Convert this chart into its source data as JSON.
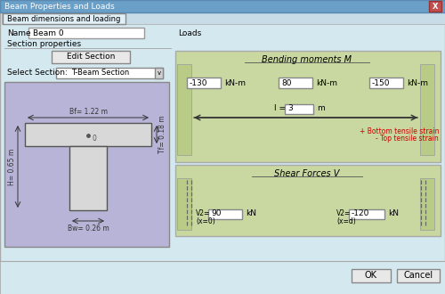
{
  "title": "Beam Properties and Loads",
  "tab_label": "Beam dimensions and loading",
  "name_label": "Name",
  "name_value": "Beam 0",
  "loads_label": "Loads",
  "section_properties_label": "Section properties",
  "edit_section_btn": "Edit Section",
  "select_section_label": "Select Section:",
  "select_section_value": "T-Beam Section",
  "bending_moments_label": "Bending moments M",
  "shear_forces_label": "Shear Forces V",
  "m1_value": "-130",
  "m1_unit": "kN-m",
  "m2_value": "80",
  "m2_unit": "kN-m",
  "m3_value": "-150",
  "m3_unit": "kN-m",
  "length_label": "l =",
  "length_value": "3",
  "length_unit": "m",
  "strain_note1": "+ Bottom tensile strain",
  "strain_note2": "- Top tensile strain",
  "v1_label": "V2=",
  "v1_value": "90",
  "v1_unit": "kN",
  "v1_pos": "(x=0)",
  "v2_label": "V2=",
  "v2_value": "-120",
  "v2_unit": "kN",
  "v2_pos": "(x=d)",
  "ok_btn": "OK",
  "cancel_btn": "Cancel",
  "bg_dialog": "#d4e8f0",
  "bg_purple": "#b8b4d8",
  "bg_green_panel": "#c8d8a0",
  "red_color": "#cc0000",
  "bf_label": "Bf= 1.22 m",
  "bw_label": "Bw= 0.26 m",
  "tf_label": "Tf= 0.18 m",
  "h_label": "H= 0.65 m"
}
